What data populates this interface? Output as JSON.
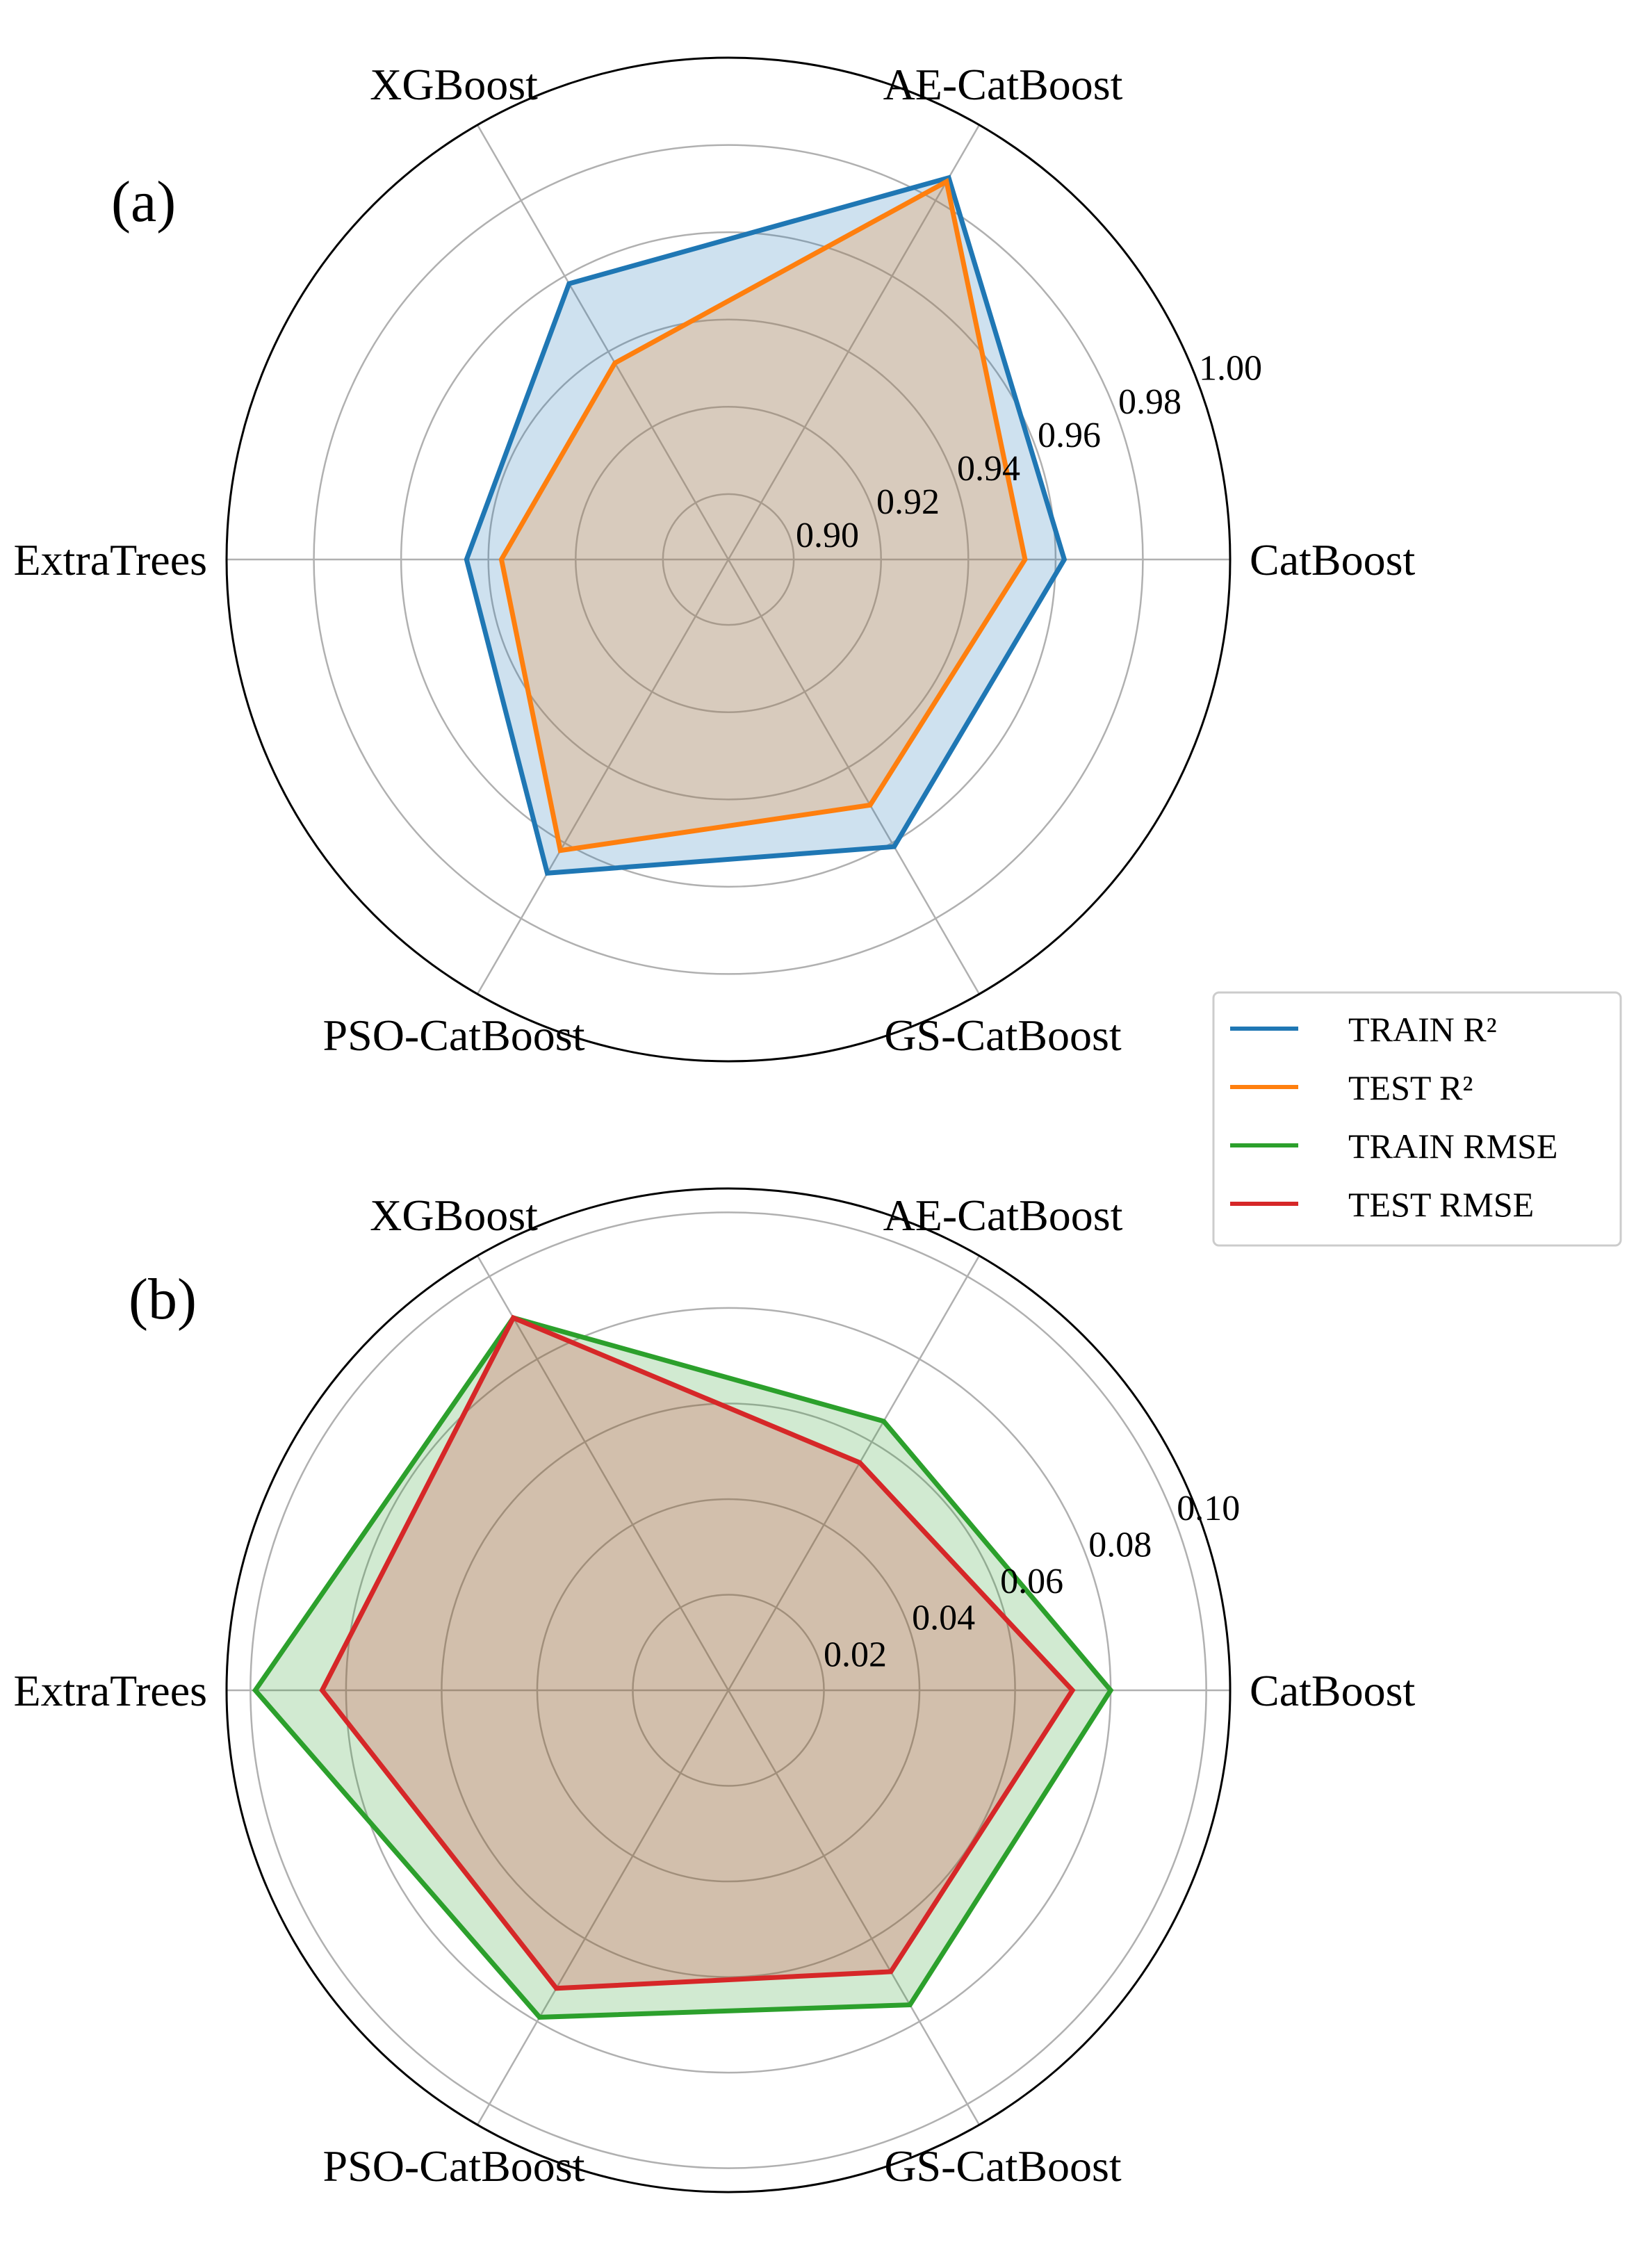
{
  "chart_data": [
    {
      "type": "radar",
      "panel_label": "(a)",
      "categories": [
        "CatBoost",
        "AE-CatBoost",
        "XGBoost",
        "ExtraTrees",
        "PSO-CatBoost",
        "GS-CatBoost"
      ],
      "rlim": [
        0.885,
        1.0
      ],
      "rticks": [
        0.9,
        0.92,
        0.94,
        0.96,
        0.98,
        1.0
      ],
      "rtick_labels": [
        "0.90",
        "0.92",
        "0.94",
        "0.96",
        "0.98",
        "1.00"
      ],
      "series": [
        {
          "name": "TRAIN R²",
          "color": "#1f77b4",
          "values": [
            0.962,
            0.986,
            0.958,
            0.945,
            0.968,
            0.961
          ]
        },
        {
          "name": "TEST R²",
          "color": "#ff7f0e",
          "values": [
            0.953,
            0.985,
            0.937,
            0.937,
            0.962,
            0.95
          ]
        }
      ]
    },
    {
      "type": "radar",
      "panel_label": "(b)",
      "categories": [
        "CatBoost",
        "AE-CatBoost",
        "XGBoost",
        "ExtraTrees",
        "PSO-CatBoost",
        "GS-CatBoost"
      ],
      "rlim": [
        0.0,
        0.105
      ],
      "rticks": [
        0.02,
        0.04,
        0.06,
        0.08,
        0.1
      ],
      "rtick_labels": [
        "0.02",
        "0.04",
        "0.06",
        "0.08",
        "0.10"
      ],
      "series": [
        {
          "name": "TRAIN RMSE",
          "color": "#2ca02c",
          "values": [
            0.08,
            0.065,
            0.09,
            0.099,
            0.079,
            0.076
          ]
        },
        {
          "name": "TEST RMSE",
          "color": "#d62728",
          "values": [
            0.072,
            0.055,
            0.09,
            0.085,
            0.072,
            0.068
          ]
        }
      ]
    }
  ],
  "legend": {
    "location": "right, between panels",
    "entries": [
      {
        "name": "TRAIN R²",
        "color": "#1f77b4"
      },
      {
        "name": "TEST R²",
        "color": "#ff7f0e"
      },
      {
        "name": "TRAIN RMSE",
        "color": "#2ca02c"
      },
      {
        "name": "TEST RMSE",
        "color": "#d62728"
      }
    ]
  }
}
